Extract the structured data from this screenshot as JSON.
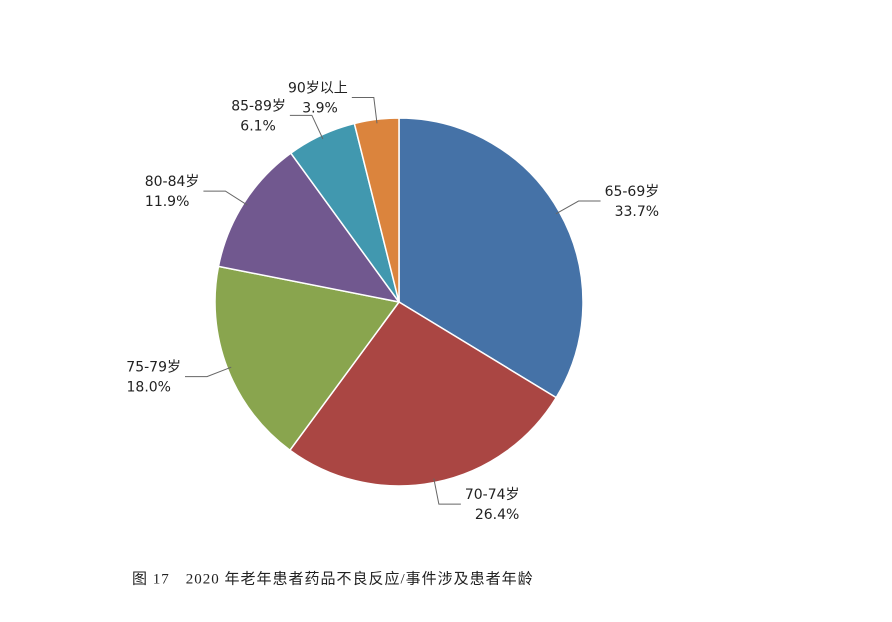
{
  "chart_data": {
    "type": "pie",
    "categories": [
      "65-69岁",
      "70-74岁",
      "75-79岁",
      "80-84岁",
      "85-89岁",
      "90岁以上"
    ],
    "values": [
      33.7,
      26.4,
      18.0,
      11.9,
      6.1,
      3.9
    ],
    "value_labels": [
      "33.7%",
      "26.4%",
      "18.0%",
      "11.9%",
      "6.1%",
      "3.9%"
    ],
    "colors": [
      "#4572a7",
      "#aa4643",
      "#89a54e",
      "#71588f",
      "#4198af",
      "#db843d"
    ],
    "caption": "图 17　2020 年老年患者药品不良反应/事件涉及患者年龄"
  }
}
